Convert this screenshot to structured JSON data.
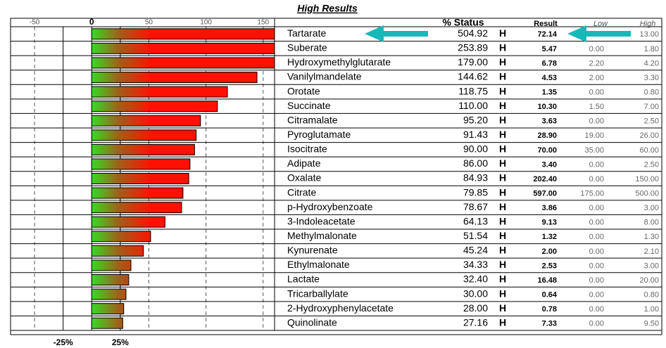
{
  "chart_data": {
    "type": "bar",
    "orientation": "horizontal",
    "title": "High Results",
    "columns": {
      "status": "% Status",
      "result": "Result",
      "low": "Low",
      "high": "High"
    },
    "categories": [
      "Tartarate",
      "Suberate",
      "Hydroxymethylglutarate",
      "Vanilylmandelate",
      "Orotate",
      "Succinate",
      "Citramalate",
      "Pyroglutamate",
      "Isocitrate",
      "Adipate",
      "Oxalate",
      "Citrate",
      "p-Hydroxybenzoate",
      "3-Indoleacetate",
      "Methylmalonate",
      "Kynurenate",
      "Ethylmalonate",
      "Lactate",
      "Tricarballylate",
      "2-Hydroxyphenylacetate",
      "Quinolinate"
    ],
    "values": [
      504.92,
      253.89,
      179.0,
      144.62,
      118.75,
      110.0,
      95.2,
      91.43,
      90.0,
      86.0,
      84.93,
      79.85,
      78.67,
      64.13,
      51.54,
      45.24,
      34.33,
      32.4,
      30.0,
      28.0,
      27.16
    ],
    "value_labels": [
      "504.92",
      "253.89",
      "179.00",
      "144.62",
      "118.75",
      "110.00",
      "95.20",
      "91.43",
      "90.00",
      "86.00",
      "84.93",
      "79.85",
      "78.67",
      "64.13",
      "51.54",
      "45.24",
      "34.33",
      "32.40",
      "30.00",
      "28.00",
      "27.16"
    ],
    "flags": [
      "H",
      "H",
      "H",
      "H",
      "H",
      "H",
      "H",
      "H",
      "H",
      "H",
      "H",
      "H",
      "H",
      "H",
      "H",
      "H",
      "H",
      "H",
      "H",
      "H",
      "H"
    ],
    "results": [
      "72.14",
      "5.47",
      "6.78",
      "4.53",
      "1.35",
      "10.30",
      "3.63",
      "28.90",
      "70.00",
      "3.40",
      "202.40",
      "597.00",
      "3.86",
      "9.13",
      "1.32",
      "2.00",
      "2.53",
      "16.48",
      "0.64",
      "0.78",
      "7.33"
    ],
    "lows": [
      null,
      "0.00",
      "2.20",
      "2.00",
      "0.00",
      "1.50",
      "0.00",
      "19.00",
      "35.00",
      "0.00",
      "0.00",
      "175.00",
      "0.00",
      "0.00",
      "0.00",
      "0.00",
      "0.00",
      "0.00",
      "0.00",
      "0.00",
      "0.00"
    ],
    "highs": [
      "13.00",
      "1.80",
      "4.20",
      "3.30",
      "0.80",
      "7.00",
      "2.50",
      "26.00",
      "60.00",
      "2.50",
      "150.00",
      "500.00",
      "3.00",
      "8.00",
      "1.30",
      "2.10",
      "3.00",
      "20.00",
      "0.80",
      "1.00",
      "9.50"
    ],
    "xlim": [
      -71,
      160
    ],
    "xticks": [
      -50,
      0,
      50,
      100,
      150
    ],
    "grid": true,
    "reference_lines": [
      {
        "value": -25,
        "label": "-25%"
      },
      {
        "value": 25,
        "label": "25%"
      }
    ],
    "colors": {
      "low": "#33dd22",
      "high": "#ff1100"
    }
  }
}
